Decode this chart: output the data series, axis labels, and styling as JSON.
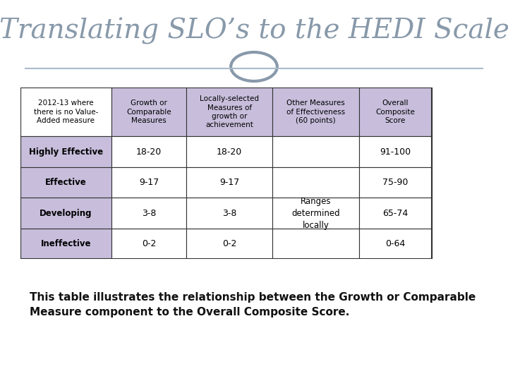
{
  "title": "Translating SLO’s to the HEDI Scale",
  "title_color": "#8899aa",
  "title_fontsize": 28,
  "bg_color": "#aabbcc",
  "slide_bg": "#ffffff",
  "footer_bg": "#8899aa",
  "caption": "This table illustrates the relationship between the Growth or Comparable\nMeasure component to the Overall Composite Score.",
  "caption_fontsize": 11,
  "col_headers": [
    "2012-13 where\nthere is no Value-\nAdded measure",
    "Growth or\nComparable\nMeasures",
    "Locally-selected\nMeasures of\ngrowth or\nachievement",
    "Other Measures\nof Effectiveness\n(60 points)",
    "Overall\nComposite\nScore"
  ],
  "row_labels": [
    "Highly Effective",
    "Effective",
    "Developing",
    "Ineffective"
  ],
  "col2_data": [
    "18-20",
    "9-17",
    "3-8",
    "0-2"
  ],
  "col3_data": [
    "18-20",
    "9-17",
    "3-8",
    "0-2"
  ],
  "col4_data": [
    "",
    "",
    "Ranges\ndetermined\nlocally",
    ""
  ],
  "col5_data": [
    "91-100",
    "75-90",
    "65-74",
    "0-64"
  ],
  "header_bg": "#c8bedc",
  "row_label_bg": "#c8bedc",
  "cell_bg": "#ffffff",
  "table_border": "#333333",
  "table_text": "#000000",
  "header_fontsize": 8,
  "cell_fontsize": 9
}
